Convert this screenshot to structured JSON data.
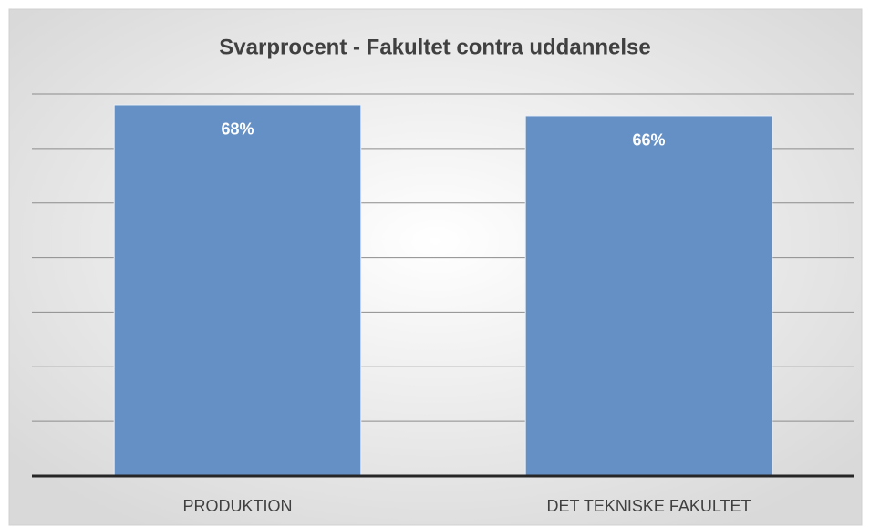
{
  "chart_data": {
    "type": "bar",
    "title": "Svarprocent - Fakultet contra uddannelse",
    "categories": [
      "PRODUKTION",
      "DET TEKNISKE FAKULTET"
    ],
    "values": [
      68,
      66
    ],
    "value_labels": [
      "68%",
      "66%"
    ],
    "color": "#6590c6",
    "ylim": [
      0,
      70
    ],
    "yticks": [
      0,
      10,
      20,
      30,
      40,
      50,
      60,
      70
    ],
    "grid": true
  }
}
